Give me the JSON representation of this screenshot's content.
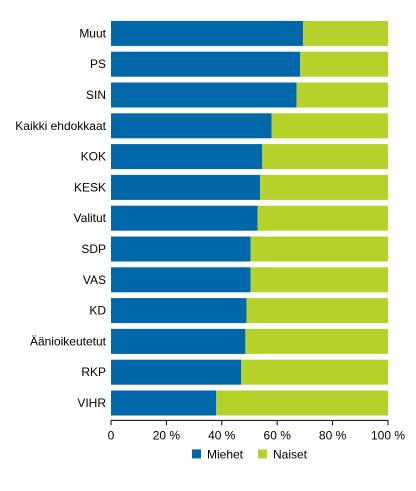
{
  "chart_data": {
    "type": "bar",
    "orientation": "horizontal",
    "stacked": true,
    "categories": [
      "Muut",
      "PS",
      "SIN",
      "Kaikki ehdokkaat",
      "KOK",
      "KESK",
      "Valitut",
      "SDP",
      "VAS",
      "KD",
      "Äänioikeutetut",
      "RKP",
      "VIHR"
    ],
    "series": [
      {
        "name": "Miehet",
        "color": "#0068a8",
        "values": [
          69.3,
          68.3,
          67.0,
          58.0,
          54.6,
          53.8,
          52.9,
          50.4,
          50.4,
          48.9,
          48.5,
          47.0,
          38.0
        ]
      },
      {
        "name": "Naiset",
        "color": "#b6d22a",
        "values": [
          30.7,
          31.7,
          33.0,
          42.0,
          45.4,
          46.2,
          47.1,
          49.6,
          49.6,
          51.1,
          51.5,
          53.0,
          62.0
        ]
      }
    ],
    "xlim": [
      0,
      100
    ],
    "xticks": [
      "0",
      "20 %",
      "40 %",
      "60 %",
      "80 %",
      "100 %"
    ],
    "grid": false,
    "legend": "bottom"
  }
}
